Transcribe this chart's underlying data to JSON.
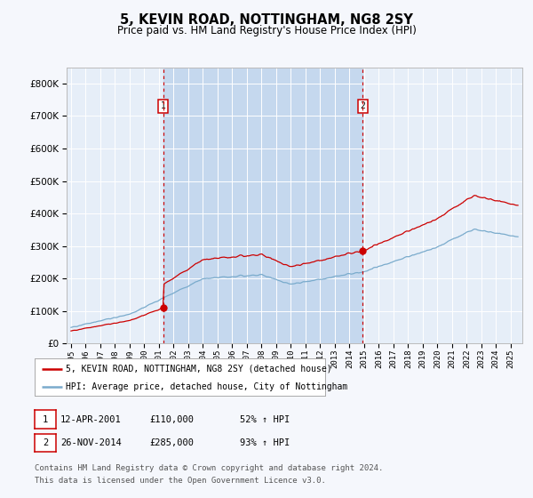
{
  "title": "5, KEVIN ROAD, NOTTINGHAM, NG8 2SY",
  "subtitle": "Price paid vs. HM Land Registry's House Price Index (HPI)",
  "legend_label_red": "5, KEVIN ROAD, NOTTINGHAM, NG8 2SY (detached house)",
  "legend_label_blue": "HPI: Average price, detached house, City of Nottingham",
  "sale1_date": "12-APR-2001",
  "sale1_price": 110000,
  "sale1_year": 2001.28,
  "sale1_label": "1",
  "sale1_pct": "52% ↑ HPI",
  "sale2_date": "26-NOV-2014",
  "sale2_price": 285000,
  "sale2_year": 2014.9,
  "sale2_label": "2",
  "sale2_pct": "93% ↑ HPI",
  "footer_line1": "Contains HM Land Registry data © Crown copyright and database right 2024.",
  "footer_line2": "This data is licensed under the Open Government Licence v3.0.",
  "ylim": [
    0,
    850000
  ],
  "yticks": [
    0,
    100000,
    200000,
    300000,
    400000,
    500000,
    600000,
    700000,
    800000
  ],
  "red_color": "#cc0000",
  "blue_color": "#7aabcc",
  "plot_bg": "#e6eef8",
  "fig_bg": "#f5f7fc",
  "shade_color": "#c5d8ee",
  "xmin": 1994.7,
  "xmax": 2025.8,
  "xtick_years": [
    1995,
    1996,
    1997,
    1998,
    1999,
    2000,
    2001,
    2002,
    2003,
    2004,
    2005,
    2006,
    2007,
    2008,
    2009,
    2010,
    2011,
    2012,
    2013,
    2014,
    2015,
    2016,
    2017,
    2018,
    2019,
    2020,
    2021,
    2022,
    2023,
    2024,
    2025
  ]
}
